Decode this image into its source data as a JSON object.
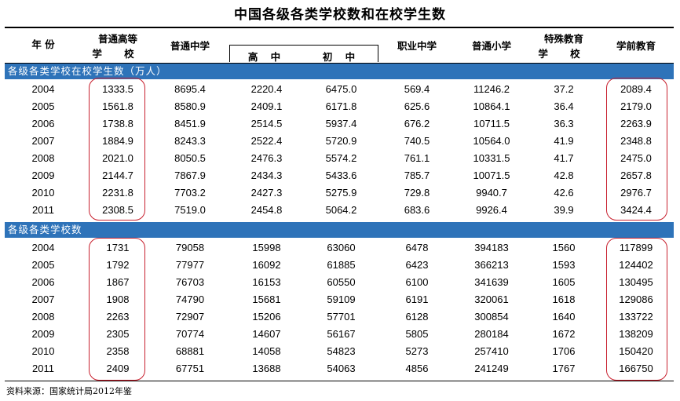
{
  "title": "中国各级各类学校数和在校学生数",
  "headers": {
    "year": "年 份",
    "higher_line1": "普通高等",
    "higher_line2": "学 校",
    "middle": "普通中学",
    "senior": "高 中",
    "junior": "初 中",
    "vocational": "职业中学",
    "primary": "普通小学",
    "special_line1": "特殊教育",
    "special_line2": "学 校",
    "preschool": "学前教育"
  },
  "sections": [
    {
      "label": "各级各类学校在校学生数（万人）",
      "rows": [
        {
          "year": "2004",
          "higher": "1333.5",
          "middle": "8695.4",
          "senior": "2220.4",
          "junior": "6475.0",
          "vocational": "569.4",
          "primary": "11246.2",
          "special": "37.2",
          "preschool": "2089.4"
        },
        {
          "year": "2005",
          "higher": "1561.8",
          "middle": "8580.9",
          "senior": "2409.1",
          "junior": "6171.8",
          "vocational": "625.6",
          "primary": "10864.1",
          "special": "36.4",
          "preschool": "2179.0"
        },
        {
          "year": "2006",
          "higher": "1738.8",
          "middle": "8451.9",
          "senior": "2514.5",
          "junior": "5937.4",
          "vocational": "676.2",
          "primary": "10711.5",
          "special": "36.3",
          "preschool": "2263.9"
        },
        {
          "year": "2007",
          "higher": "1884.9",
          "middle": "8243.3",
          "senior": "2522.4",
          "junior": "5720.9",
          "vocational": "740.5",
          "primary": "10564.0",
          "special": "41.9",
          "preschool": "2348.8"
        },
        {
          "year": "2008",
          "higher": "2021.0",
          "middle": "8050.5",
          "senior": "2476.3",
          "junior": "5574.2",
          "vocational": "761.1",
          "primary": "10331.5",
          "special": "41.7",
          "preschool": "2475.0"
        },
        {
          "year": "2009",
          "higher": "2144.7",
          "middle": "7867.9",
          "senior": "2434.3",
          "junior": "5433.6",
          "vocational": "785.7",
          "primary": "10071.5",
          "special": "42.8",
          "preschool": "2657.8"
        },
        {
          "year": "2010",
          "higher": "2231.8",
          "middle": "7703.2",
          "senior": "2427.3",
          "junior": "5275.9",
          "vocational": "729.8",
          "primary": "9940.7",
          "special": "42.6",
          "preschool": "2976.7"
        },
        {
          "year": "2011",
          "higher": "2308.5",
          "middle": "7519.0",
          "senior": "2454.8",
          "junior": "5064.2",
          "vocational": "683.6",
          "primary": "9926.4",
          "special": "39.9",
          "preschool": "3424.4"
        }
      ]
    },
    {
      "label": "各级各类学校数",
      "rows": [
        {
          "year": "2004",
          "higher": "1731",
          "middle": "79058",
          "senior": "15998",
          "junior": "63060",
          "vocational": "6478",
          "primary": "394183",
          "special": "1560",
          "preschool": "117899"
        },
        {
          "year": "2005",
          "higher": "1792",
          "middle": "77977",
          "senior": "16092",
          "junior": "61885",
          "vocational": "6423",
          "primary": "366213",
          "special": "1593",
          "preschool": "124402"
        },
        {
          "year": "2006",
          "higher": "1867",
          "middle": "76703",
          "senior": "16153",
          "junior": "60550",
          "vocational": "6100",
          "primary": "341639",
          "special": "1605",
          "preschool": "130495"
        },
        {
          "year": "2007",
          "higher": "1908",
          "middle": "74790",
          "senior": "15681",
          "junior": "59109",
          "vocational": "6191",
          "primary": "320061",
          "special": "1618",
          "preschool": "129086"
        },
        {
          "year": "2008",
          "higher": "2263",
          "middle": "72907",
          "senior": "15206",
          "junior": "57701",
          "vocational": "6128",
          "primary": "300854",
          "special": "1640",
          "preschool": "133722"
        },
        {
          "year": "2009",
          "higher": "2305",
          "middle": "70774",
          "senior": "14607",
          "junior": "56167",
          "vocational": "5805",
          "primary": "280184",
          "special": "1672",
          "preschool": "138209"
        },
        {
          "year": "2010",
          "higher": "2358",
          "middle": "68881",
          "senior": "14058",
          "junior": "54823",
          "vocational": "5273",
          "primary": "257410",
          "special": "1706",
          "preschool": "150420"
        },
        {
          "year": "2011",
          "higher": "2409",
          "middle": "67751",
          "senior": "13688",
          "junior": "54063",
          "vocational": "4856",
          "primary": "241249",
          "special": "1767",
          "preschool": "166750"
        }
      ]
    }
  ],
  "source": "资料来源：国家统计局2012年鉴",
  "colors": {
    "section_bg": "#2e73b9",
    "highlight": "#c8212f"
  }
}
